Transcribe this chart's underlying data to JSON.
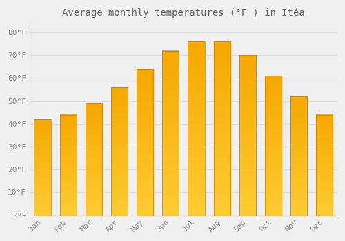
{
  "title": "Average monthly temperatures (°F ) in Itéa",
  "months": [
    "Jan",
    "Feb",
    "Mar",
    "Apr",
    "May",
    "Jun",
    "Jul",
    "Aug",
    "Sep",
    "Oct",
    "Nov",
    "Dec"
  ],
  "values": [
    42,
    44,
    49,
    56,
    64,
    72,
    76,
    76,
    70,
    61,
    52,
    44
  ],
  "bar_color_bottom": "#FFCC33",
  "bar_color_top": "#F5A800",
  "bar_edge_color": "#C87800",
  "background_color": "#F0F0F0",
  "yticks": [
    0,
    10,
    20,
    30,
    40,
    50,
    60,
    70,
    80
  ],
  "ylim": [
    0,
    84
  ],
  "grid_color": "#DDDDDD",
  "title_fontsize": 10,
  "tick_fontsize": 8,
  "tick_color": "#888888",
  "title_color": "#666666"
}
